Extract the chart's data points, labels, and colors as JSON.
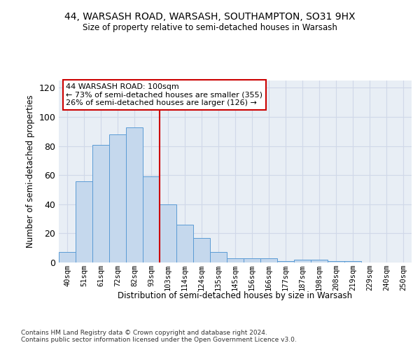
{
  "title_line1": "44, WARSASH ROAD, WARSASH, SOUTHAMPTON, SO31 9HX",
  "title_line2": "Size of property relative to semi-detached houses in Warsash",
  "xlabel": "Distribution of semi-detached houses by size in Warsash",
  "ylabel": "Number of semi-detached properties",
  "categories": [
    "40sqm",
    "51sqm",
    "61sqm",
    "72sqm",
    "82sqm",
    "93sqm",
    "103sqm",
    "114sqm",
    "124sqm",
    "135sqm",
    "145sqm",
    "156sqm",
    "166sqm",
    "177sqm",
    "187sqm",
    "198sqm",
    "208sqm",
    "219sqm",
    "229sqm",
    "240sqm",
    "250sqm"
  ],
  "bar_heights": [
    7,
    56,
    81,
    88,
    93,
    59,
    40,
    26,
    17,
    7,
    3,
    3,
    3,
    1,
    2,
    2,
    1,
    1,
    0,
    0,
    0
  ],
  "bar_color": "#c5d8ed",
  "bar_edge_color": "#5b9bd5",
  "annotation_text": "44 WARSASH ROAD: 100sqm\n← 73% of semi-detached houses are smaller (355)\n26% of semi-detached houses are larger (126) →",
  "annotation_box_color": "#ffffff",
  "annotation_box_edge_color": "#cc0000",
  "vline_color": "#cc0000",
  "grid_color": "#d0d8e8",
  "background_color": "#e8eef5",
  "footer_text": "Contains HM Land Registry data © Crown copyright and database right 2024.\nContains public sector information licensed under the Open Government Licence v3.0.",
  "ylim": [
    0,
    125
  ],
  "yticks": [
    0,
    20,
    40,
    60,
    80,
    100,
    120
  ]
}
